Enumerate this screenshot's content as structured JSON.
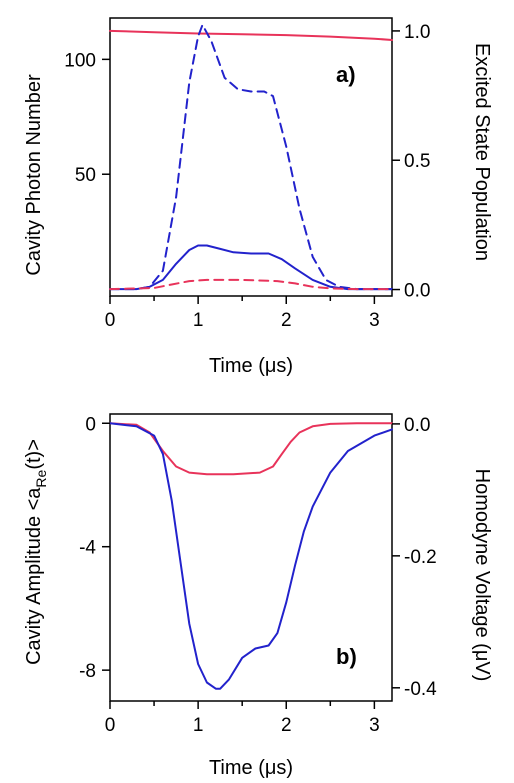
{
  "chart_data": [
    {
      "type": "line",
      "panel_label": "a)",
      "xlabel": "Time (μs)",
      "ylabel_left": "Cavity Photon Number",
      "ylabel_right": "Excited State Population",
      "xlim": [
        0,
        3.2
      ],
      "ylim_left": [
        -3,
        118
      ],
      "ylim_right": [
        -0.025,
        1.05
      ],
      "x_ticks": [
        0,
        1,
        2,
        3
      ],
      "y_left_ticks": [
        50,
        100
      ],
      "y_right_ticks": [
        "0.0",
        "0.5",
        "1.0"
      ],
      "y_right_tick_values": [
        0,
        0.5,
        1.0
      ],
      "grid": false,
      "series": [
        {
          "axis": "right",
          "color": "#e8335a",
          "style": "solid",
          "x": [
            0,
            0.5,
            1.0,
            1.5,
            2.0,
            2.5,
            3.0,
            3.2
          ],
          "y": [
            1.0,
            0.995,
            0.99,
            0.987,
            0.984,
            0.978,
            0.97,
            0.965
          ]
        },
        {
          "axis": "left",
          "color": "#2222cc",
          "style": "dashed",
          "x": [
            0,
            0.3,
            0.45,
            0.6,
            0.75,
            0.9,
            1.0,
            1.05,
            1.15,
            1.3,
            1.45,
            1.6,
            1.75,
            1.85,
            2.0,
            2.15,
            2.3,
            2.45,
            2.6,
            2.8,
            3.0,
            3.2
          ],
          "y": [
            0,
            0,
            1,
            8,
            40,
            90,
            110,
            115,
            108,
            92,
            87,
            86,
            86,
            84,
            62,
            35,
            14,
            4,
            1,
            0,
            0,
            0
          ]
        },
        {
          "axis": "left",
          "color": "#2222cc",
          "style": "solid",
          "x": [
            0,
            0.3,
            0.45,
            0.6,
            0.75,
            0.9,
            1.0,
            1.1,
            1.25,
            1.4,
            1.6,
            1.8,
            1.95,
            2.1,
            2.3,
            2.5,
            2.7,
            2.9,
            3.2
          ],
          "y": [
            0,
            0,
            1,
            4,
            11,
            17,
            19,
            19,
            17.5,
            16,
            15.5,
            15.5,
            13,
            9,
            4,
            1,
            0,
            0,
            0
          ]
        },
        {
          "axis": "left",
          "color": "#e8335a",
          "style": "dashed",
          "x": [
            0,
            0.5,
            0.7,
            0.9,
            1.1,
            1.5,
            1.9,
            2.1,
            2.3,
            2.5,
            2.8,
            3.2
          ],
          "y": [
            0,
            0.5,
            2,
            3.5,
            4,
            4,
            3.5,
            2.5,
            1,
            0.3,
            0,
            0
          ]
        }
      ]
    },
    {
      "type": "line",
      "panel_label": "b)",
      "xlabel": "Time (μs)",
      "ylabel_left_main": "Cavity Amplitude <a",
      "ylabel_left_sub": "Re",
      "ylabel_left_tail": "(t)>",
      "ylabel_right": "Homodyne Voltage (μV)",
      "xlim": [
        0,
        3.2
      ],
      "ylim_left": [
        -9.0,
        0.3
      ],
      "ylim_right": [
        -0.42,
        0.015
      ],
      "x_ticks": [
        0,
        1,
        2,
        3
      ],
      "y_left_ticks": [
        -8,
        -4,
        0
      ],
      "y_right_ticks": [
        "-0.4",
        "-0.2",
        "0.0"
      ],
      "y_right_tick_values": [
        -0.4,
        -0.2,
        0.0
      ],
      "grid": false,
      "series": [
        {
          "axis": "left",
          "color": "#e8335a",
          "style": "solid",
          "x": [
            0,
            0.3,
            0.45,
            0.6,
            0.75,
            0.9,
            1.1,
            1.4,
            1.7,
            1.85,
            1.95,
            2.05,
            2.15,
            2.3,
            2.5,
            2.8,
            3.2
          ],
          "y": [
            0,
            -0.05,
            -0.3,
            -0.9,
            -1.4,
            -1.6,
            -1.65,
            -1.65,
            -1.6,
            -1.4,
            -1.0,
            -0.6,
            -0.3,
            -0.1,
            -0.02,
            0,
            0
          ]
        },
        {
          "axis": "left",
          "color": "#2222cc",
          "style": "solid",
          "x": [
            0,
            0.3,
            0.5,
            0.6,
            0.7,
            0.8,
            0.9,
            1.0,
            1.1,
            1.2,
            1.25,
            1.35,
            1.5,
            1.65,
            1.8,
            1.9,
            2.0,
            2.1,
            2.2,
            2.3,
            2.5,
            2.7,
            3.0,
            3.2
          ],
          "y": [
            0,
            -0.1,
            -0.4,
            -1.0,
            -2.5,
            -4.5,
            -6.5,
            -7.8,
            -8.4,
            -8.6,
            -8.6,
            -8.3,
            -7.6,
            -7.3,
            -7.2,
            -6.8,
            -5.8,
            -4.6,
            -3.5,
            -2.7,
            -1.6,
            -0.9,
            -0.4,
            -0.2
          ]
        }
      ]
    }
  ]
}
